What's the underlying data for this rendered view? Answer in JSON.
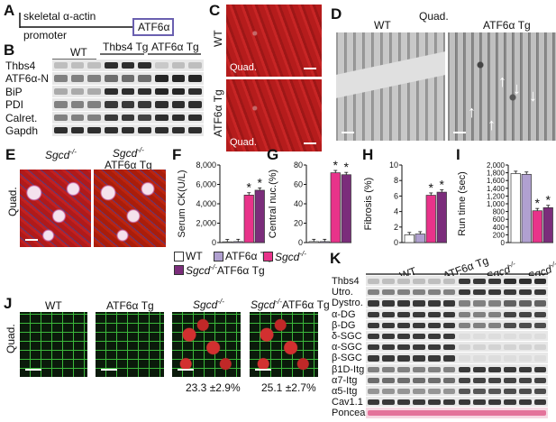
{
  "panels": {
    "A": "A",
    "B": "B",
    "C": "C",
    "D": "D",
    "E": "E",
    "F": "F",
    "G": "G",
    "H": "H",
    "I": "I",
    "J": "J",
    "K": "K"
  },
  "panel_a": {
    "promoter_line1": "skeletal α-actin",
    "promoter_line2": "promoter",
    "transgene": "ATF6α"
  },
  "panel_b": {
    "groups": [
      "WT",
      "Thbs4 Tg",
      "ATF6α Tg"
    ],
    "rows": [
      "Thbs4",
      "ATF6α-N",
      "BiP",
      "PDI",
      "Calret.",
      "Gapdh"
    ]
  },
  "panel_c": {
    "labels": [
      "WT",
      "ATF6α Tg"
    ],
    "inset": "Quad."
  },
  "panel_d": {
    "title": "Quad.",
    "labels": [
      "WT",
      "ATF6α Tg"
    ]
  },
  "panel_e": {
    "side": "Quad.",
    "label1": "Sgcd",
    "label1_sup": "-/-",
    "label2a": "Sgcd",
    "label2a_sup": "-/-",
    "label2b": "ATF6α Tg"
  },
  "legend": {
    "items": [
      {
        "label": "WT",
        "color": "#ffffff"
      },
      {
        "label": "ATF6α Tg",
        "color": "#b0a0d0"
      },
      {
        "label": "Sgcd",
        "sup": "-/-",
        "color": "#e8338a"
      },
      {
        "label": "Sgcd",
        "sup": "-/-",
        "suffix": "ATF6α Tg",
        "color": "#7b2d7b"
      }
    ]
  },
  "panel_j": {
    "side": "Quad.",
    "labels": [
      "WT",
      "ATF6α Tg",
      "Sgcd",
      "Sgcd"
    ],
    "sup": "-/-",
    "last_suffix": "ATF6α Tg",
    "values": [
      "23.3 ±2.9%",
      "25.1 ±2.7%"
    ]
  },
  "panel_k": {
    "groups": [
      "WT",
      "ATF6α Tg",
      "Sgcd",
      "Sgcd"
    ],
    "sup": "-/-",
    "last_suffix": "Tg",
    "rows": [
      "Thbs4",
      "Utro.",
      "Dystro.",
      "α-DG",
      "β-DG",
      "δ-SGC",
      "α-SGC",
      "β-SGC",
      "β1D-Itg",
      "α7-Itg",
      "α5-Itg",
      "Cav1.1",
      "Ponceau"
    ]
  },
  "chart_data": [
    {
      "type": "bar",
      "ylabel": "Serum CK(U/L)",
      "categories": [
        "WT",
        "ATF6α Tg",
        "Sgcd-/-",
        "Sgcd-/- ATF6α Tg"
      ],
      "values": [
        80,
        100,
        4900,
        5400
      ],
      "ylim": [
        0,
        8000
      ],
      "yticks": [
        "0",
        "2,000",
        "4,000",
        "6,000",
        "8,000"
      ],
      "significance": [
        "",
        "",
        "*",
        "*"
      ]
    },
    {
      "type": "bar",
      "ylabel": "Central nuc.(%)",
      "categories": [
        "WT",
        "ATF6α Tg",
        "Sgcd-/-",
        "Sgcd-/- ATF6α Tg"
      ],
      "values": [
        1,
        1,
        72,
        70
      ],
      "ylim": [
        0,
        80
      ],
      "yticks": [
        "0",
        "20",
        "40",
        "60",
        "80"
      ],
      "significance": [
        "",
        "",
        "*",
        "*"
      ]
    },
    {
      "type": "bar",
      "ylabel": "Fibrosis (%)",
      "categories": [
        "WT",
        "ATF6α Tg",
        "Sgcd-/-",
        "Sgcd-/- ATF6α Tg"
      ],
      "values": [
        1,
        1.1,
        6.1,
        6.5
      ],
      "ylim": [
        0,
        10
      ],
      "yticks": [
        "0",
        "2",
        "4",
        "6",
        "8",
        "10"
      ],
      "significance": [
        "",
        "",
        "*",
        "*"
      ]
    },
    {
      "type": "bar",
      "ylabel": "Run time (sec)",
      "categories": [
        "WT",
        "ATF6α Tg",
        "Sgcd-/-",
        "Sgcd-/- ATF6α Tg"
      ],
      "values": [
        1780,
        1760,
        820,
        900
      ],
      "ylim": [
        0,
        2000
      ],
      "yticks": [
        "0",
        "200",
        "400",
        "600",
        "800",
        "1,000",
        "1,200",
        "1,400",
        "1,600",
        "1,800",
        "2,000"
      ],
      "significance": [
        "",
        "",
        "*",
        "*"
      ]
    }
  ],
  "colors": {
    "wt": "#ffffff",
    "atf6": "#b0a0d0",
    "sgcd": "#e8338a",
    "sgcd_atf6": "#7b2d7b"
  }
}
